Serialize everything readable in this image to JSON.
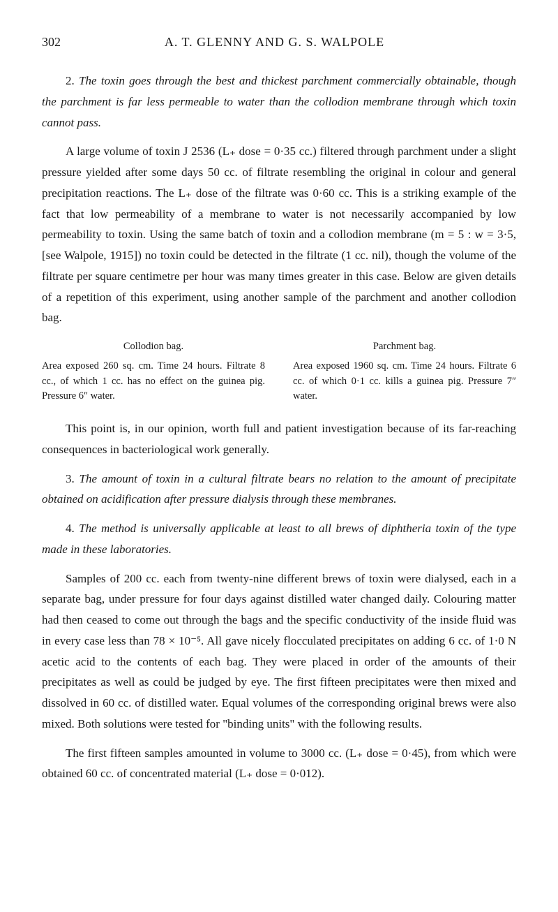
{
  "page_number": "302",
  "authors": "A. T. GLENNY AND G. S. WALPOLE",
  "paragraphs": {
    "p1_lead": "2.   ",
    "p1_italic": "The toxin goes through the best and thickest parchment commercially obtainable, though the parchment is far less permeable to water than the collodion membrane through which toxin cannot pass.",
    "p2": "A large volume of toxin J 2536 (L₊ dose = 0·35 cc.) filtered through parchment under a slight pressure yielded after some days 50 cc. of filtrate resembling the original in colour and general precipitation reactions. The L₊ dose of the filtrate was 0·60 cc. This is a striking example of the fact that low permeability of a membrane to water is not necessarily accompanied by low permeability to toxin. Using the same batch of toxin and a collodion membrane (m = 5 : w = 3·5, [see Walpole, 1915]) no toxin could be detected in the filtrate (1 cc. nil), though the volume of the filtrate per square centimetre per hour was many times greater in this case. Below are given details of a repetition of this experiment, using another sample of the parchment and another collodion bag.",
    "col1_heading": "Collodion bag.",
    "col1_body": "Area exposed 260 sq. cm. Time 24 hours. Filtrate 8 cc., of which 1 cc. has no effect on the guinea pig. Pressure 6″ water.",
    "col2_heading": "Parchment bag.",
    "col2_body": "Area exposed 1960 sq. cm. Time 24 hours. Filtrate 6 cc. of which 0·1 cc. kills a guinea pig. Pressure 7″ water.",
    "p3": "This point is, in our opinion, worth full and patient investigation because of its far-reaching consequences in bacteriological work generally.",
    "p4_lead": "3.   ",
    "p4_italic": "The amount of toxin in a cultural filtrate bears no relation to the amount of precipitate obtained on acidification after pressure dialysis through these membranes.",
    "p5_lead": "4.   ",
    "p5_italic": "The method is universally applicable at least to all brews of diphtheria toxin of the type made in these laboratories.",
    "p6": "Samples of 200 cc. each from twenty-nine different brews of toxin were dialysed, each in a separate bag, under pressure for four days against distilled water changed daily. Colouring matter had then ceased to come out through the bags and the specific conductivity of the inside fluid was in every case less than 78 × 10⁻⁵. All gave nicely flocculated precipitates on adding 6 cc. of 1·0 N acetic acid to the contents of each bag. They were placed in order of the amounts of their precipitates as well as could be judged by eye. The first fifteen precipitates were then mixed and dissolved in 60 cc. of distilled water. Equal volumes of the corresponding original brews were also mixed. Both solutions were tested for \"binding units\" with the following results.",
    "p7": "The first fifteen samples amounted in volume to 3000 cc. (L₊ dose = 0·45), from which were obtained 60 cc. of concentrated material (L₊ dose = 0·012)."
  }
}
